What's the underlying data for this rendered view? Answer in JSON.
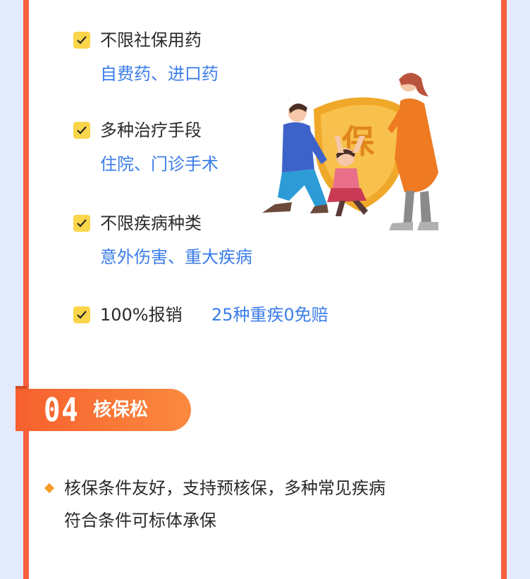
{
  "features": [
    {
      "title": "不限社保用药",
      "sub": "自费药、进口药"
    },
    {
      "title": "多种治疗手段",
      "sub": "住院、门诊手术"
    },
    {
      "title": "不限疾病种类",
      "sub": "意外伤害、重大疾病"
    },
    {
      "title": "100%报销",
      "inline": "25种重疾0免赔"
    }
  ],
  "section": {
    "number": "04",
    "title": "核保松"
  },
  "description": {
    "line1": "核保条件友好，支持预核保，多种常见疾病",
    "line2": "符合条件可标体承保"
  },
  "illustration": {
    "shield_char": "保"
  },
  "colors": {
    "accent": "#f4603d",
    "blue_text": "#3b7de9",
    "check": "#fbd54a",
    "background": "#e3eafc"
  }
}
